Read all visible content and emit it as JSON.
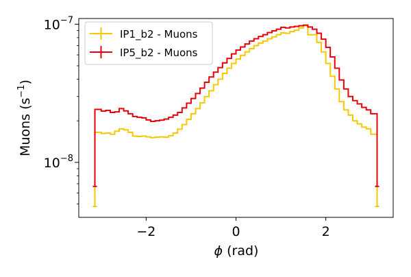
{
  "chart_data": {
    "type": "line",
    "step": true,
    "xlabel_symbol": "ϕ",
    "xlabel_unit": " (rad)",
    "ylabel_main": "Muons (s",
    "ylabel_exp": "−1",
    "ylabel_close": ")",
    "xlim": [
      -3.5,
      3.5
    ],
    "ylim": [
      4e-09,
      1.1e-07
    ],
    "yscale": "log",
    "x_ticks": [
      {
        "value": -2,
        "label": "−2"
      },
      {
        "value": 0,
        "label": "0"
      },
      {
        "value": 2,
        "label": "2"
      }
    ],
    "y_ticks": [
      {
        "value": 1e-08,
        "base": "10",
        "exp": "−8"
      },
      {
        "value": 1e-07,
        "base": "10",
        "exp": "−7"
      }
    ],
    "legend_position": "top-left",
    "x_edges": [
      -3.1416,
      -3.0,
      -2.9,
      -2.8,
      -2.7,
      -2.6,
      -2.5,
      -2.4,
      -2.3,
      -2.2,
      -2.1,
      -2.0,
      -1.9,
      -1.8,
      -1.7,
      -1.6,
      -1.5,
      -1.4,
      -1.3,
      -1.2,
      -1.1,
      -1.0,
      -0.9,
      -0.8,
      -0.7,
      -0.6,
      -0.5,
      -0.4,
      -0.3,
      -0.2,
      -0.1,
      0.0,
      0.1,
      0.2,
      0.3,
      0.4,
      0.5,
      0.6,
      0.7,
      0.8,
      0.9,
      1.0,
      1.1,
      1.2,
      1.3,
      1.4,
      1.5,
      1.6,
      1.7,
      1.8,
      1.9,
      2.0,
      2.1,
      2.2,
      2.3,
      2.4,
      2.5,
      2.6,
      2.7,
      2.8,
      2.9,
      3.0,
      3.1416
    ],
    "series": [
      {
        "name": "IP1_b2 - Muons",
        "color": "#f5c800",
        "end_values": [
          4.8e-09,
          4.8e-09
        ],
        "values": [
          1.65e-08,
          1.62e-08,
          1.63e-08,
          1.6e-08,
          1.68e-08,
          1.75e-08,
          1.72e-08,
          1.65e-08,
          1.55e-08,
          1.54e-08,
          1.55e-08,
          1.53e-08,
          1.51e-08,
          1.52e-08,
          1.53e-08,
          1.52e-08,
          1.56e-08,
          1.63e-08,
          1.74e-08,
          1.88e-08,
          2.05e-08,
          2.25e-08,
          2.45e-08,
          2.7e-08,
          3e-08,
          3.3e-08,
          3.65e-08,
          4e-08,
          4.4e-08,
          4.8e-08,
          5.2e-08,
          5.6e-08,
          5.95e-08,
          6.3e-08,
          6.65e-08,
          7e-08,
          7.3e-08,
          7.55e-08,
          7.85e-08,
          8.1e-08,
          8.4e-08,
          8.65e-08,
          8.6e-08,
          8.85e-08,
          9.05e-08,
          9.4e-08,
          9.75e-08,
          8.4e-08,
          8.4e-08,
          7.4e-08,
          6.3e-08,
          5.2e-08,
          4.2e-08,
          3.4e-08,
          2.75e-08,
          2.4e-08,
          2.2e-08,
          2e-08,
          1.9e-08,
          1.8e-08,
          1.75e-08,
          1.6e-08
        ]
      },
      {
        "name": "IP5_b2 - Muons",
        "color": "#e8000b",
        "end_values": [
          6.7e-09,
          6.7e-09
        ],
        "values": [
          2.42e-08,
          2.35e-08,
          2.38e-08,
          2.3e-08,
          2.32e-08,
          2.45e-08,
          2.36e-08,
          2.25e-08,
          2.15e-08,
          2.12e-08,
          2.1e-08,
          2.03e-08,
          1.98e-08,
          2e-08,
          2.02e-08,
          2.06e-08,
          2.12e-08,
          2.2e-08,
          2.3e-08,
          2.48e-08,
          2.68e-08,
          2.9e-08,
          3.15e-08,
          3.45e-08,
          3.8e-08,
          4.15e-08,
          4.5e-08,
          4.85e-08,
          5.25e-08,
          5.65e-08,
          6.1e-08,
          6.5e-08,
          6.85e-08,
          7.2e-08,
          7.55e-08,
          7.85e-08,
          8.15e-08,
          8.4e-08,
          8.7e-08,
          8.95e-08,
          9.2e-08,
          9.5e-08,
          9.4e-08,
          9.55e-08,
          9.65e-08,
          9.75e-08,
          9.85e-08,
          9.55e-08,
          9.2e-08,
          8.6e-08,
          7.8e-08,
          6.8e-08,
          5.8e-08,
          4.8e-08,
          3.95e-08,
          3.4e-08,
          3e-08,
          2.8e-08,
          2.65e-08,
          2.5e-08,
          2.4e-08,
          2.25e-08
        ]
      }
    ]
  }
}
